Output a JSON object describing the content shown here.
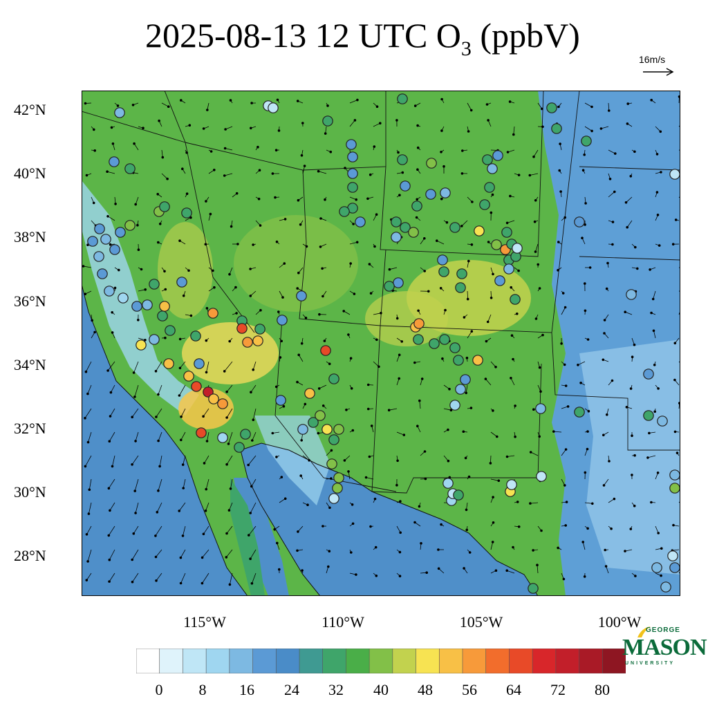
{
  "title": {
    "main": "2025-08-13 12 UTC O",
    "subscript": "3",
    "units": " (ppbV)"
  },
  "wind_reference": {
    "label": "16m/s"
  },
  "map": {
    "lat_labels": [
      {
        "text": "42°N",
        "value": 42
      },
      {
        "text": "40°N",
        "value": 40
      },
      {
        "text": "38°N",
        "value": 38
      },
      {
        "text": "36°N",
        "value": 36
      },
      {
        "text": "34°N",
        "value": 34
      },
      {
        "text": "32°N",
        "value": 32
      },
      {
        "text": "30°N",
        "value": 30
      },
      {
        "text": "28°N",
        "value": 28
      }
    ],
    "lon_labels": [
      {
        "text": "115°W",
        "value": -115
      },
      {
        "text": "110°W",
        "value": -110
      },
      {
        "text": "105°W",
        "value": -105
      },
      {
        "text": "100°W",
        "value": -100
      }
    ]
  },
  "colorbar": {
    "labels": [
      "0",
      "8",
      "16",
      "24",
      "32",
      "40",
      "48",
      "56",
      "64",
      "72",
      "80"
    ],
    "colors": [
      "#ffffff",
      "#dff3fb",
      "#bfe6f6",
      "#9fd6f0",
      "#7db9e2",
      "#5b9ad5",
      "#4a8cc8",
      "#3f9a92",
      "#3fa56a",
      "#4aae48",
      "#82c048",
      "#c2d24e",
      "#f7e352",
      "#f8c046",
      "#f79a3a",
      "#f26d2c",
      "#e84a28",
      "#d8262a",
      "#c21f2a",
      "#a91a26",
      "#8e1622"
    ]
  },
  "logo": {
    "line1": "GEORGE",
    "line2": "MASON",
    "line3": "UNIVERSITY"
  },
  "colors": {
    "ocean": "#4f8fc9",
    "land": "#5cb548",
    "high": "#f2dd5a",
    "low": "#9fd6f0",
    "logo": "#0b6b3a"
  }
}
